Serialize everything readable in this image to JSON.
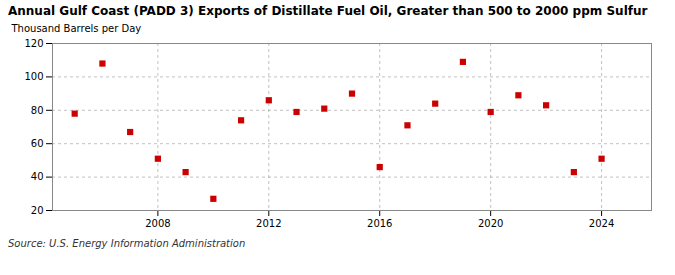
{
  "chart_data": {
    "type": "scatter",
    "title": "Annual Gulf Coast (PADD 3) Exports of Distillate Fuel Oil, Greater than 500 to 2000 ppm Sulfur",
    "ylabel": "Thousand Barrels per Day",
    "source": "Source: U.S. Energy Information Administration",
    "x": [
      2005,
      2006,
      2007,
      2008,
      2009,
      2010,
      2011,
      2012,
      2013,
      2014,
      2015,
      2016,
      2017,
      2018,
      2019,
      2020,
      2021,
      2022,
      2023,
      2024
    ],
    "values": [
      78,
      108,
      67,
      51,
      43,
      27,
      74,
      86,
      79,
      81,
      90,
      46,
      71,
      84,
      109,
      79,
      89,
      83,
      43,
      51
    ],
    "xlim": [
      2004.2,
      2025.8
    ],
    "xticks": [
      2008,
      2012,
      2016,
      2020,
      2024
    ],
    "ylim": [
      20,
      120
    ],
    "yticks": [
      20,
      40,
      60,
      80,
      100,
      120
    ],
    "color": "#cc0000",
    "marker": "square",
    "grid": true
  }
}
